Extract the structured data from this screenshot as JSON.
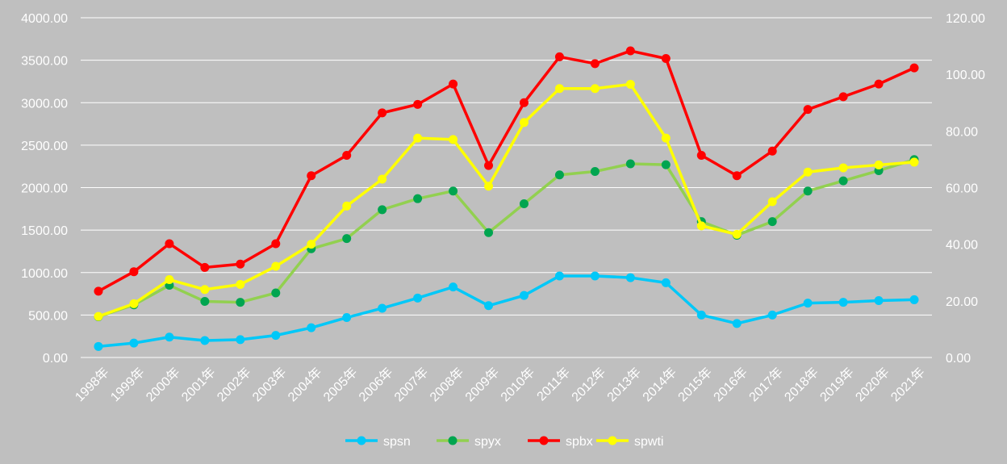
{
  "chart_data": {
    "type": "line",
    "title": "",
    "xlabel": "",
    "ylabel": "",
    "categories": [
      "1998年",
      "1999年",
      "2000年",
      "2001年",
      "2002年",
      "2003年",
      "2004年",
      "2005年",
      "2006年",
      "2007年",
      "2008年",
      "2009年",
      "2010年",
      "2011年",
      "2012年",
      "2013年",
      "2014年",
      "2015年",
      "2016年",
      "2017年",
      "2018年",
      "2019年",
      "2020年",
      "2021年"
    ],
    "ylim_left": [
      0,
      4000
    ],
    "yticks_left": [
      "0.00",
      "500.00",
      "1000.00",
      "1500.00",
      "2000.00",
      "2500.00",
      "3000.00",
      "3500.00",
      "4000.00"
    ],
    "ylim_right": [
      0,
      120
    ],
    "yticks_right": [
      "0.00",
      "20.00",
      "40.00",
      "60.00",
      "80.00",
      "100.00",
      "120.00"
    ],
    "grid": true,
    "legend_position": "bottom",
    "series": [
      {
        "name": "spsn",
        "axis": "left",
        "color": "#00c8f8",
        "values": [
          130,
          170,
          240,
          200,
          210,
          260,
          350,
          470,
          580,
          700,
          830,
          610,
          730,
          960,
          960,
          940,
          880,
          500,
          400,
          500,
          640,
          650,
          670,
          680
        ]
      },
      {
        "name": "spyx",
        "axis": "left",
        "color": "#00a550",
        "line_color": "#92d050",
        "values": [
          480,
          620,
          850,
          660,
          650,
          760,
          1280,
          1400,
          1740,
          1870,
          1960,
          1470,
          1810,
          2150,
          2190,
          2280,
          2270,
          1600,
          1440,
          1600,
          1960,
          2080,
          2200,
          2330
        ]
      },
      {
        "name": "spbx",
        "axis": "left",
        "color": "#ff0000",
        "values": [
          780,
          1010,
          1340,
          1060,
          1100,
          1340,
          2140,
          2380,
          2880,
          2980,
          3220,
          2260,
          3000,
          3540,
          3460,
          3610,
          3520,
          2380,
          2140,
          2430,
          2920,
          3070,
          3220,
          3410
        ]
      },
      {
        "name": "spwti",
        "axis": "right",
        "color": "#ffff00",
        "values": [
          14.5,
          19,
          27.5,
          24,
          25.8,
          32.2,
          40,
          53.5,
          63,
          77.5,
          77,
          60.5,
          83,
          95,
          95,
          96.5,
          77.5,
          46.5,
          43.5,
          55,
          65.5,
          67,
          68,
          69
        ]
      }
    ]
  }
}
